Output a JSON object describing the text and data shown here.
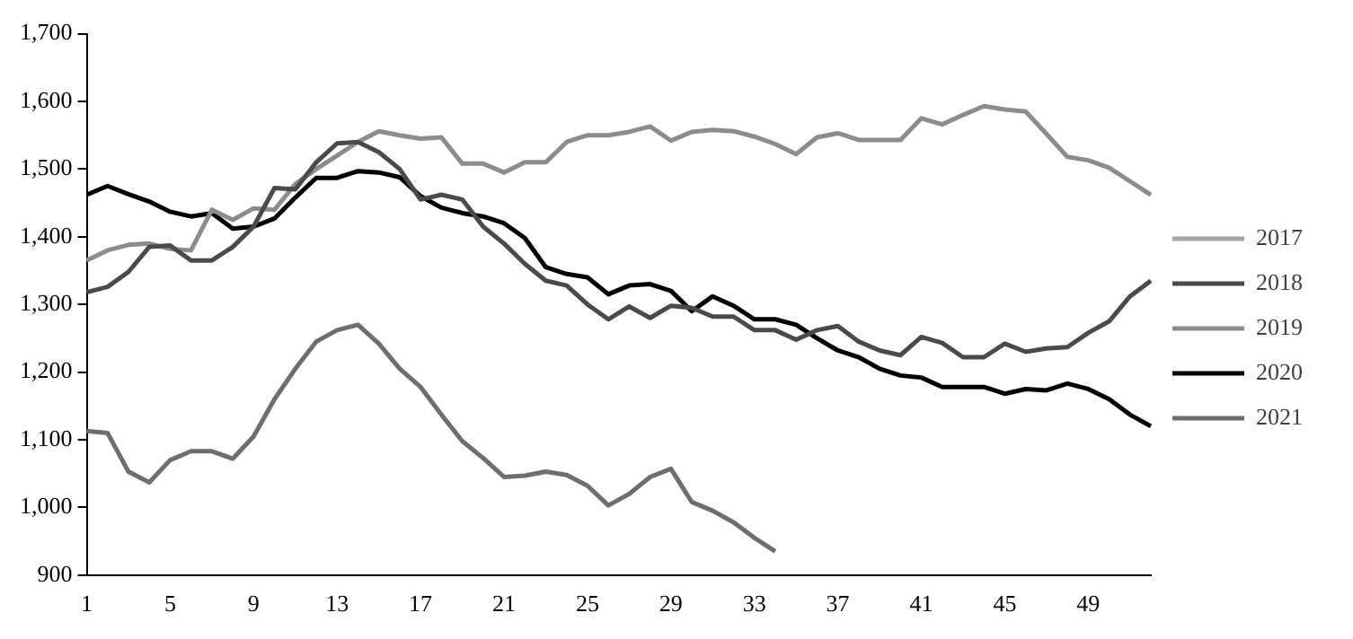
{
  "chart_data": {
    "type": "line",
    "categories": [
      "1",
      null,
      null,
      null,
      "5",
      null,
      null,
      null,
      "9",
      null,
      null,
      null,
      "13",
      null,
      null,
      null,
      "17",
      null,
      null,
      null,
      "21",
      null,
      null,
      null,
      "25",
      null,
      null,
      null,
      "29",
      null,
      null,
      null,
      "33",
      null,
      null,
      null,
      "37",
      null,
      null,
      null,
      "41",
      null,
      null,
      null,
      "45",
      null,
      null,
      null,
      "49",
      null,
      null,
      null
    ],
    "ylim": [
      900,
      1700
    ],
    "yticks": [
      900,
      {
        "value": 1000,
        "label": "1,000"
      },
      {
        "value": 1100,
        "label": "1,100"
      },
      {
        "value": 1200,
        "label": "1,200"
      },
      {
        "value": 1300,
        "label": "1,300"
      },
      {
        "value": 1400,
        "label": "1,400"
      },
      {
        "value": 1500,
        "label": "1,500"
      },
      {
        "value": 1600,
        "label": "1,600"
      },
      {
        "value": 1700,
        "label": "1,700"
      }
    ],
    "grid": false,
    "legend": "right",
    "marker": "none",
    "line_style": "solid",
    "series": [
      {
        "name": "2017",
        "color": "#a6a6a6",
        "values": [
          null,
          null,
          null,
          null,
          null,
          null,
          null,
          null,
          null,
          null,
          null,
          null,
          null,
          null,
          null,
          null,
          null,
          null,
          null,
          null,
          null,
          null,
          null,
          null,
          null,
          null,
          null,
          null,
          null,
          null,
          null,
          null,
          null,
          null,
          null,
          null,
          null,
          null,
          null,
          null,
          null,
          null,
          null,
          null,
          null,
          null,
          null,
          null,
          null,
          null,
          null,
          null
        ]
      },
      {
        "name": "2018",
        "color": "#4a4a4a",
        "values": [
          1318,
          1326,
          1348,
          1385,
          1387,
          1365,
          1365,
          1385,
          1415,
          1472,
          1470,
          1510,
          1538,
          1540,
          1525,
          1500,
          1455,
          1462,
          1455,
          1415,
          1390,
          1360,
          1335,
          1328,
          1300,
          1278,
          1297,
          1280,
          1298,
          1295,
          1282,
          1282,
          1262,
          1262,
          1248,
          1262,
          1268,
          1245,
          1232,
          1225,
          1252,
          1243,
          1222,
          1222,
          1242,
          1230,
          1235,
          1237,
          1258,
          1275,
          1312,
          1335
        ]
      },
      {
        "name": "2019",
        "color": "#8c8c8c",
        "values": [
          1365,
          1380,
          1388,
          1390,
          1382,
          1380,
          1440,
          1425,
          1442,
          1440,
          1478,
          1500,
          1520,
          1540,
          1556,
          1550,
          1545,
          1547,
          1508,
          1508,
          1495,
          1510,
          1510,
          1540,
          1550,
          1550,
          1555,
          1563,
          1542,
          1555,
          1558,
          1556,
          1548,
          1537,
          1522,
          1547,
          1553,
          1543,
          1543,
          1543,
          1575,
          1566,
          1580,
          1593,
          1588,
          1585,
          1552,
          1518,
          1513,
          1502,
          1482,
          1462
        ]
      },
      {
        "name": "2020",
        "color": "#000000",
        "values": [
          1462,
          1475,
          1463,
          1452,
          1437,
          1430,
          1435,
          1412,
          1415,
          1427,
          1458,
          1487,
          1487,
          1497,
          1495,
          1488,
          1460,
          1443,
          1435,
          1430,
          1420,
          1398,
          1355,
          1345,
          1340,
          1315,
          1328,
          1330,
          1320,
          1290,
          1312,
          1298,
          1278,
          1278,
          1270,
          1250,
          1232,
          1222,
          1205,
          1195,
          1192,
          1178,
          1178,
          1178,
          1168,
          1175,
          1173,
          1183,
          1175,
          1160,
          1137,
          1120
        ]
      },
      {
        "name": "2021",
        "color": "#6e6e6e",
        "values": [
          1113,
          1110,
          1053,
          1037,
          1070,
          1083,
          1083,
          1072,
          1105,
          1160,
          1205,
          1245,
          1262,
          1270,
          1242,
          1205,
          1178,
          1137,
          1098,
          1073,
          1045,
          1047,
          1053,
          1048,
          1032,
          1003,
          1020,
          1045,
          1057,
          1008,
          995,
          978,
          955,
          935,
          null,
          null,
          null,
          null,
          null,
          null,
          null,
          null,
          null,
          null,
          null,
          null,
          null,
          null,
          null,
          null,
          null,
          null
        ]
      }
    ]
  }
}
